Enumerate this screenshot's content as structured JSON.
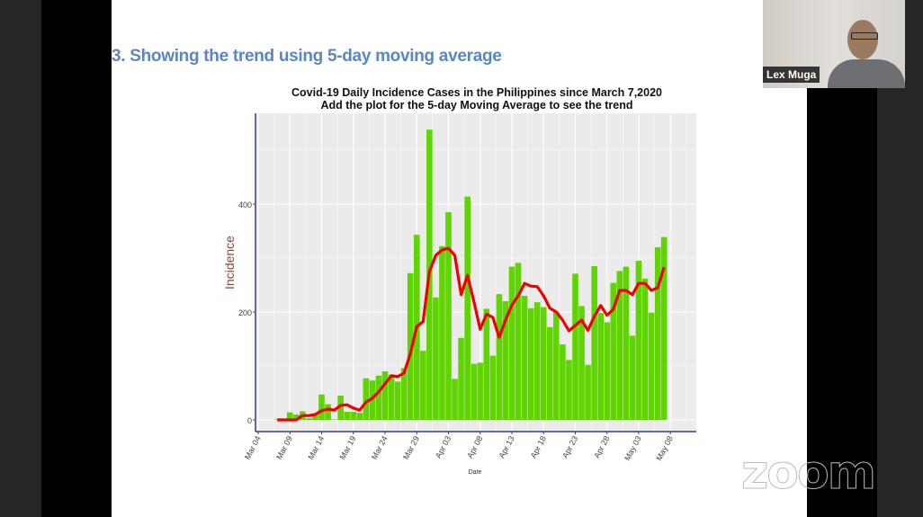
{
  "slide": {
    "title": "3. Showing the trend using 5-day moving average"
  },
  "video": {
    "participant_name": "Lex Muga"
  },
  "watermark": "zoom",
  "colors": {
    "title": "#5b86c4",
    "bar": "#5fd400",
    "moving_average": "#ee0000",
    "panel": "#ebebeb",
    "axis": "#3a3a8c",
    "ylabel": "#8b4a3a"
  },
  "chart_data": {
    "type": "bar",
    "title": "Covid-19 Daily Incidence Cases in the Philippines since March 7,2020",
    "subtitle": "Add the plot for the 5-day Moving Average to see the trend",
    "xlabel": "Date",
    "ylabel": "Incidence",
    "ylim": [
      -20,
      570
    ],
    "yticks": [
      0,
      200,
      400
    ],
    "xticks": [
      "Mar 04",
      "Mar 09",
      "Mar 14",
      "Mar 19",
      "Mar 24",
      "Mar 29",
      "Apr 03",
      "Apr 08",
      "Apr 13",
      "Apr 18",
      "Apr 23",
      "Apr 28",
      "May 03",
      "May 08"
    ],
    "x_start": "Mar 07",
    "x_start_offset_days": 3,
    "grid": true,
    "series": [
      {
        "name": "Daily incidence",
        "type": "bar",
        "values": [
          1,
          2,
          14,
          10,
          16,
          3,
          12,
          47,
          29,
          1,
          45,
          15,
          15,
          13,
          77,
          73,
          82,
          90,
          84,
          71,
          96,
          272,
          343,
          128,
          538,
          227,
          322,
          385,
          76,
          152,
          414,
          104,
          106,
          206,
          119,
          233,
          220,
          284,
          291,
          230,
          207,
          218,
          209,
          172,
          200,
          140,
          111,
          271,
          211,
          102,
          285,
          198,
          181,
          254,
          276,
          284,
          156,
          295,
          262,
          199,
          320,
          339
        ]
      },
      {
        "name": "5-day moving average",
        "type": "line",
        "values": [
          0,
          0,
          0,
          0,
          8,
          8,
          10,
          17,
          20,
          18,
          27,
          28,
          22,
          18,
          33,
          40,
          52,
          67,
          82,
          80,
          87,
          123,
          173,
          182,
          275,
          305,
          315,
          318,
          305,
          232,
          268,
          220,
          168,
          196,
          190,
          153,
          185,
          213,
          230,
          253,
          248,
          247,
          230,
          207,
          200,
          185,
          165,
          175,
          185,
          166,
          192,
          212,
          194,
          205,
          240,
          240,
          232,
          253,
          253,
          240,
          245,
          283
        ]
      }
    ]
  }
}
